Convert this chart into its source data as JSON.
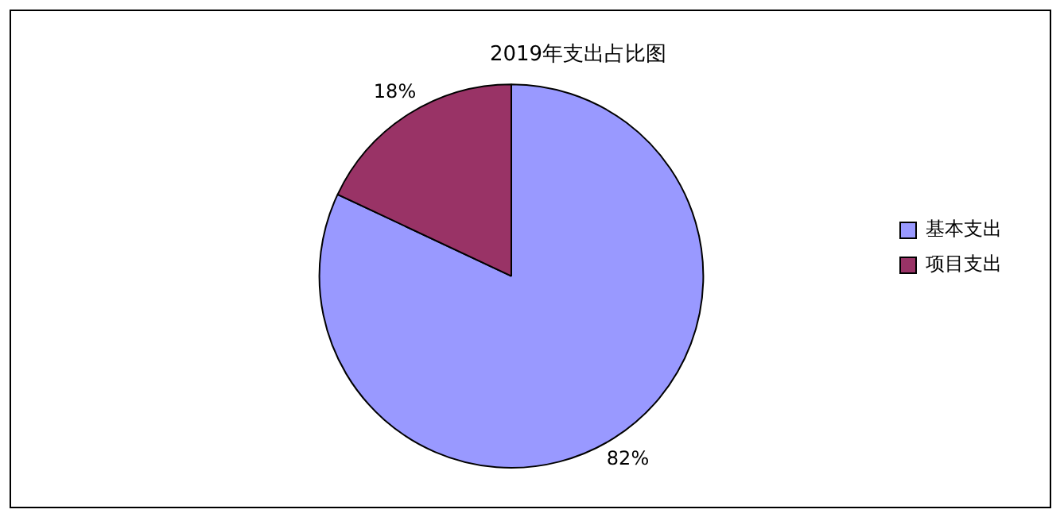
{
  "chart_data": {
    "type": "pie",
    "title": "2019年支出占比图",
    "categories": [
      "基本支出",
      "项目支出"
    ],
    "values": [
      82,
      18
    ],
    "colors": [
      "#9999ff",
      "#993366"
    ],
    "value_labels": [
      "82%",
      "18%"
    ],
    "legend": "right"
  }
}
